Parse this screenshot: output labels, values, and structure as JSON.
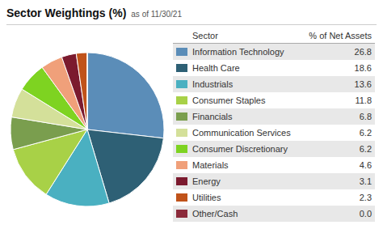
{
  "chart_data": {
    "type": "pie",
    "title": "Sector Weightings (%)",
    "subtitle": "as of 11/30/21",
    "categories": [
      "Information Technology",
      "Health Care",
      "Industrials",
      "Consumer Staples",
      "Financials",
      "Communication Services",
      "Consumer Discretionary",
      "Materials",
      "Energy",
      "Utilities",
      "Other/Cash"
    ],
    "values": [
      26.8,
      18.6,
      13.6,
      11.8,
      6.8,
      6.2,
      6.2,
      4.6,
      3.1,
      2.3,
      0.001
    ],
    "value_labels": [
      "26.8",
      "18.6",
      "13.6",
      "11.8",
      "6.8",
      "6.2",
      "6.2",
      "4.6",
      "3.1",
      "2.3",
      "0.0"
    ],
    "colors": [
      "#5b8db8",
      "#2e6075",
      "#4ab0c1",
      "#a8d147",
      "#7a9e4e",
      "#d4e09a",
      "#7ed321",
      "#f0a07a",
      "#7b1a2e",
      "#c0531a",
      "#8b2a3a"
    ],
    "column_headers": [
      "Sector",
      "% of Net Assets"
    ],
    "legend": "right"
  }
}
